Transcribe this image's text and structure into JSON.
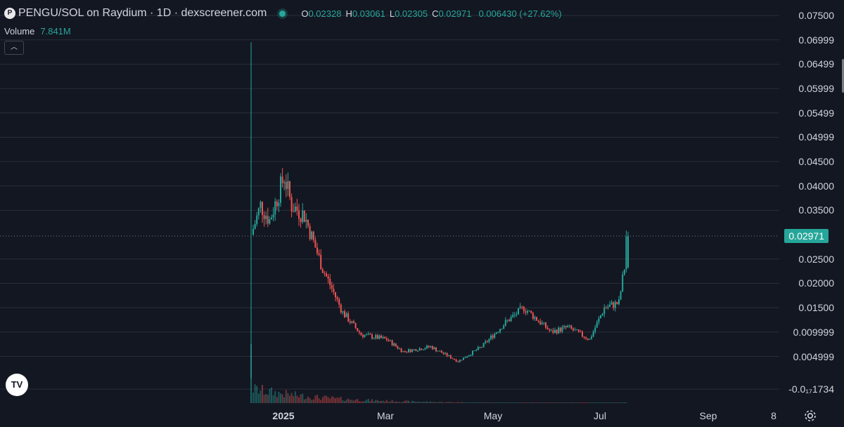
{
  "header": {
    "logo_icon": "pengu-logo-icon",
    "title": "PENGU/SOL on Raydium · 1D · dexscreener.com",
    "status_icon": "market-open-dot-icon",
    "ohlc": {
      "o_label": "O",
      "o_value": "0.02328",
      "h_label": "H",
      "h_value": "0.03061",
      "l_label": "L",
      "l_value": "0.02305",
      "c_label": "C",
      "c_value": "0.02971",
      "change": "0.006430 (+27.62%)"
    },
    "volume_label": "Volume",
    "volume_value": "7.841M",
    "collapse_icon": "chevron-up-icon"
  },
  "price_axis": {
    "ticks": [
      "0.07500",
      "0.06999",
      "0.06499",
      "0.05999",
      "0.05499",
      "0.04999",
      "0.04500",
      "0.04000",
      "0.03500",
      "0.02500",
      "0.02000",
      "0.01500",
      "0.009999",
      "0.004999",
      "-0.0₁₇1734"
    ],
    "last_price": "0.02971"
  },
  "time_axis": {
    "ticks": [
      "2025",
      "Mar",
      "May",
      "Jul",
      "Sep",
      "8"
    ]
  },
  "colors": {
    "background": "#131722",
    "up": "#26a69a",
    "down": "#ef5350",
    "grid": "#2a2e39"
  },
  "footer": {
    "tradingview_logo": "tradingview-logo",
    "settings_icon": "gear-icon"
  },
  "chart_data": {
    "type": "candlestick",
    "interval": "1D",
    "y_range": [
      -0.002,
      0.0775
    ],
    "x_ticks": [
      "2025",
      "Mar",
      "May",
      "Jul",
      "Sep",
      "8"
    ],
    "series_points": [
      {
        "date": "2024-12-17",
        "close": 0.03
      },
      {
        "date": "2024-12-22",
        "close": 0.036
      },
      {
        "date": "2024-12-27",
        "close": 0.033
      },
      {
        "date": "2025-01-04",
        "close": 0.042
      },
      {
        "date": "2025-01-08",
        "close": 0.036
      },
      {
        "date": "2025-01-15",
        "close": 0.034
      },
      {
        "date": "2025-01-25",
        "close": 0.023
      },
      {
        "date": "2025-02-05",
        "close": 0.014
      },
      {
        "date": "2025-02-15",
        "close": 0.0095
      },
      {
        "date": "2025-03-01",
        "close": 0.0085
      },
      {
        "date": "2025-03-10",
        "close": 0.006
      },
      {
        "date": "2025-03-25",
        "close": 0.007
      },
      {
        "date": "2025-04-09",
        "close": 0.004
      },
      {
        "date": "2025-04-22",
        "close": 0.007
      },
      {
        "date": "2025-05-05",
        "close": 0.012
      },
      {
        "date": "2025-05-15",
        "close": 0.015
      },
      {
        "date": "2025-05-30",
        "close": 0.01
      },
      {
        "date": "2025-06-08",
        "close": 0.011
      },
      {
        "date": "2025-06-20",
        "close": 0.0085
      },
      {
        "date": "2025-06-28",
        "close": 0.015
      },
      {
        "date": "2025-07-06",
        "close": 0.016
      },
      {
        "date": "2025-07-09",
        "close": 0.0233
      },
      {
        "date": "2025-07-10",
        "close": 0.02971
      }
    ]
  }
}
